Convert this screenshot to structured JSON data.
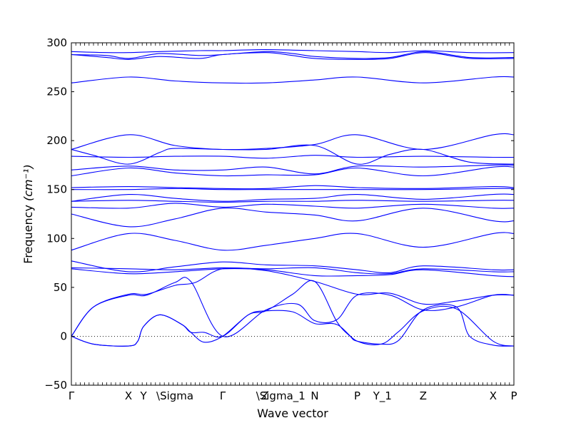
{
  "chart_data": {
    "type": "line",
    "xlabel": "Wave vector",
    "ylabel_text": "Frequency",
    "ylabel_unit": "(cm⁻¹)",
    "ylim": [
      -50,
      300
    ],
    "yticks": [
      -50,
      0,
      50,
      100,
      150,
      200,
      250,
      300
    ],
    "xlim": [
      0,
      1.0
    ],
    "grid": false,
    "legend": "none",
    "line_color": "#0000ff",
    "zero_line": true,
    "xticks": [
      {
        "label": "Γ",
        "x": 0.0
      },
      {
        "label": "X",
        "x": 0.129
      },
      {
        "label": "Y",
        "x": 0.163
      },
      {
        "label": "\\Sigma",
        "x": 0.234
      },
      {
        "label": "Γ",
        "x": 0.342
      },
      {
        "label": "Z",
        "x": 0.437
      },
      {
        "label": "\\Sigma_1",
        "x": 0.473
      },
      {
        "label": "N",
        "x": 0.55
      },
      {
        "label": "P",
        "x": 0.646
      },
      {
        "label": "Y_1",
        "x": 0.703
      },
      {
        "label": "Z",
        "x": 0.795
      },
      {
        "label": "X",
        "x": 0.953
      },
      {
        "label": "P",
        "x": 1.0
      }
    ],
    "series": [
      {
        "x": [
          0,
          0.08,
          0.13,
          0.2,
          0.29,
          0.342,
          0.44,
          0.55,
          0.646,
          0.72,
          0.8,
          0.9,
          1.0
        ],
        "y": [
          291,
          290,
          290,
          291,
          292,
          292,
          293,
          292,
          291,
          290,
          292,
          290,
          290
        ]
      },
      {
        "x": [
          0,
          0.08,
          0.13,
          0.2,
          0.29,
          0.342,
          0.44,
          0.5,
          0.55,
          0.646,
          0.72,
          0.8,
          0.9,
          1.0
        ],
        "y": [
          288,
          287,
          284,
          289,
          287,
          288,
          291,
          289,
          286,
          284,
          285,
          291,
          285,
          285
        ]
      },
      {
        "x": [
          0,
          0.08,
          0.13,
          0.2,
          0.29,
          0.342,
          0.44,
          0.5,
          0.55,
          0.646,
          0.72,
          0.8,
          0.9,
          1.0
        ],
        "y": [
          288,
          285,
          283,
          286,
          284,
          288,
          290,
          287,
          284,
          283,
          284,
          290,
          284,
          284
        ]
      },
      {
        "x": [
          0,
          0.129,
          0.234,
          0.342,
          0.44,
          0.55,
          0.646,
          0.795,
          0.953,
          1.0
        ],
        "y": [
          259,
          265,
          261,
          259,
          259,
          262,
          265,
          259,
          265,
          265
        ]
      },
      {
        "x": [
          0,
          0.129,
          0.234,
          0.342,
          0.44,
          0.55,
          0.646,
          0.795,
          0.953,
          1.0
        ],
        "y": [
          191,
          206,
          195,
          191,
          192,
          196,
          206,
          191,
          206,
          206
        ]
      },
      {
        "x": [
          0,
          0.05,
          0.129,
          0.2,
          0.234,
          0.342,
          0.44,
          0.55,
          0.646,
          0.72,
          0.795,
          0.9,
          1.0
        ],
        "y": [
          191,
          185,
          176,
          188,
          192,
          191,
          191,
          195,
          176,
          186,
          191,
          178,
          176
        ]
      },
      {
        "x": [
          0,
          0.129,
          0.234,
          0.342,
          0.44,
          0.55,
          0.646,
          0.795,
          0.953,
          1.0
        ],
        "y": [
          184,
          183,
          184,
          184,
          182,
          185,
          183,
          184,
          183,
          183
        ]
      },
      {
        "x": [
          0,
          0.129,
          0.234,
          0.342,
          0.44,
          0.55,
          0.646,
          0.795,
          0.953,
          1.0
        ],
        "y": [
          170,
          174,
          170,
          170,
          173,
          166,
          174,
          173,
          175,
          175
        ]
      },
      {
        "x": [
          0,
          0.129,
          0.234,
          0.342,
          0.44,
          0.55,
          0.646,
          0.795,
          0.953,
          1.0
        ],
        "y": [
          164,
          172,
          167,
          164,
          165,
          165,
          172,
          164,
          173,
          173
        ]
      },
      {
        "x": [
          0,
          0.129,
          0.234,
          0.342,
          0.44,
          0.55,
          0.646,
          0.795,
          0.953,
          1.0
        ],
        "y": [
          152,
          153,
          152,
          151,
          151,
          154,
          152,
          151,
          153,
          152
        ]
      },
      {
        "x": [
          0,
          0.129,
          0.234,
          0.342,
          0.44,
          0.55,
          0.646,
          0.795,
          0.953,
          1.0
        ],
        "y": [
          150,
          150,
          151,
          150,
          150,
          150,
          150,
          150,
          151,
          151
        ]
      },
      {
        "x": [
          0,
          0.129,
          0.234,
          0.342,
          0.44,
          0.55,
          0.646,
          0.795,
          0.953,
          1.0
        ],
        "y": [
          138,
          145,
          141,
          138,
          140,
          141,
          145,
          140,
          145,
          145
        ]
      },
      {
        "x": [
          0,
          0.129,
          0.234,
          0.342,
          0.44,
          0.55,
          0.646,
          0.795,
          0.953,
          1.0
        ],
        "y": [
          138,
          139,
          138,
          137,
          138,
          138,
          139,
          138,
          139,
          139
        ]
      },
      {
        "x": [
          0,
          0.129,
          0.234,
          0.342,
          0.44,
          0.55,
          0.646,
          0.795,
          0.953,
          1.0
        ],
        "y": [
          132,
          131,
          136,
          132,
          135,
          133,
          131,
          135,
          131,
          131
        ]
      },
      {
        "x": [
          0,
          0.129,
          0.234,
          0.342,
          0.44,
          0.55,
          0.646,
          0.795,
          0.953,
          1.0
        ],
        "y": [
          125,
          112,
          120,
          131,
          127,
          124,
          118,
          131,
          118,
          118
        ]
      },
      {
        "x": [
          0,
          0.129,
          0.234,
          0.342,
          0.44,
          0.55,
          0.646,
          0.795,
          0.953,
          1.0
        ],
        "y": [
          88,
          105,
          98,
          88,
          93,
          100,
          105,
          91,
          105,
          105
        ]
      },
      {
        "x": [
          0,
          0.129,
          0.234,
          0.342,
          0.44,
          0.55,
          0.646,
          0.72,
          0.795,
          0.953,
          1.0
        ],
        "y": [
          77,
          66,
          71,
          76,
          73,
          72,
          68,
          65,
          72,
          68,
          68
        ]
      },
      {
        "x": [
          0,
          0.129,
          0.234,
          0.342,
          0.44,
          0.55,
          0.646,
          0.72,
          0.795,
          0.953,
          1.0
        ],
        "y": [
          70,
          69,
          68,
          70,
          69,
          70,
          65,
          64,
          69,
          66,
          66
        ]
      },
      {
        "x": [
          0,
          0.129,
          0.234,
          0.342,
          0.44,
          0.55,
          0.646,
          0.72,
          0.795,
          0.953,
          1.0
        ],
        "y": [
          69,
          64,
          66,
          69,
          68,
          62,
          62,
          63,
          68,
          62,
          61
        ]
      },
      {
        "x": [
          0,
          0.05,
          0.129,
          0.17,
          0.234,
          0.28,
          0.342,
          0.44,
          0.55,
          0.646,
          0.72,
          0.795,
          0.87,
          0.953,
          1.0
        ],
        "y": [
          0,
          30,
          43,
          43,
          52,
          55,
          69,
          67,
          56,
          43,
          44,
          33,
          36,
          42,
          42
        ]
      },
      {
        "x": [
          0,
          0.05,
          0.129,
          0.17,
          0.234,
          0.27,
          0.342,
          0.44,
          0.51,
          0.55,
          0.6,
          0.646,
          0.72,
          0.795,
          0.87,
          0.953,
          1.0
        ],
        "y": [
          0,
          30,
          42,
          42,
          55,
          56,
          0,
          27,
          33,
          16,
          17,
          42,
          42,
          27,
          30,
          42,
          42
        ]
      },
      {
        "x": [
          0,
          0.05,
          0.129,
          0.15,
          0.163,
          0.2,
          0.25,
          0.27,
          0.3,
          0.342,
          0.4,
          0.44,
          0.5,
          0.55,
          0.6,
          0.646,
          0.7,
          0.74,
          0.795,
          0.87,
          0.953,
          1.0
        ],
        "y": [
          0,
          -8,
          -10,
          -5,
          10,
          22,
          12,
          4,
          4,
          0,
          22,
          26,
          25,
          13,
          12,
          -5,
          -8,
          5,
          26,
          28,
          -5,
          -10
        ]
      },
      {
        "x": [
          0,
          0.05,
          0.129,
          0.15,
          0.163,
          0.2,
          0.25,
          0.27,
          0.3,
          0.342,
          0.4,
          0.44,
          0.5,
          0.55,
          0.6,
          0.63,
          0.646,
          0.7,
          0.74,
          0.795,
          0.87,
          0.9,
          0.953,
          1.0
        ],
        "y": [
          0,
          -8,
          -10,
          -5,
          10,
          22,
          12,
          4,
          -6,
          0,
          22,
          26,
          43,
          56,
          15,
          0,
          -5,
          -8,
          -4,
          27,
          30,
          0,
          -9,
          -10
        ]
      }
    ]
  }
}
